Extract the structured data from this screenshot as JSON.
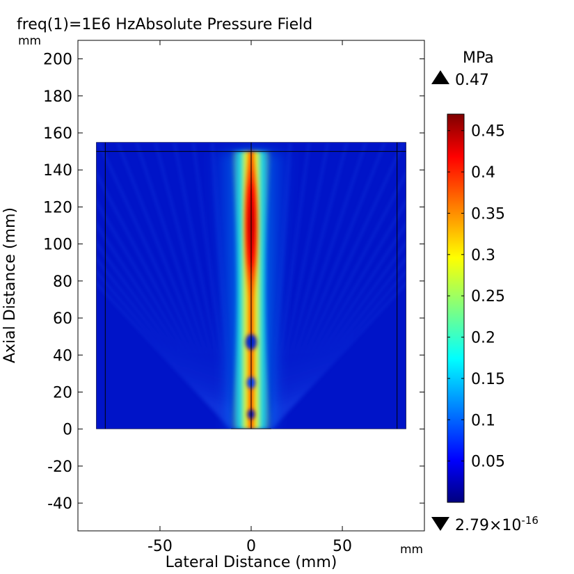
{
  "chart_data": {
    "type": "heatmap",
    "title": "freq(1)=1E6 HzAbsolute Pressure Field",
    "xlabel": "Lateral Distance (mm)",
    "ylabel": "Axial Distance (mm)",
    "x_unit": "mm",
    "y_unit": "mm",
    "xlim": [
      -95,
      95
    ],
    "ylim": [
      -55,
      210
    ],
    "x_ticks": [
      -50,
      0,
      50
    ],
    "y_ticks": [
      200,
      180,
      160,
      140,
      120,
      100,
      80,
      60,
      40,
      20,
      0,
      -20,
      -40
    ],
    "x_tick_labels": [
      "-50",
      "0",
      "50"
    ],
    "y_tick_labels": [
      "200",
      "180",
      "160",
      "140",
      "120",
      "100",
      "80",
      "60",
      "40",
      "20",
      "0",
      "-20",
      "-40"
    ],
    "domain": {
      "x": [
        -85,
        85
      ],
      "y": [
        0,
        155
      ]
    },
    "inner_boundary": {
      "x": [
        -80,
        80
      ],
      "y_top": 150
    },
    "transducer": {
      "x": [
        -11,
        11
      ],
      "y": 0
    },
    "colorbar": {
      "unit": "MPa",
      "max": 0.47,
      "max_label": "0.47",
      "min_label_base": "2.79×10",
      "min_label_exp": "-16",
      "ticks": [
        0.45,
        0.4,
        0.35,
        0.3,
        0.25,
        0.2,
        0.15,
        0.1,
        0.05
      ],
      "tick_labels": [
        "0.45",
        "0.4",
        "0.35",
        "0.3",
        "0.25",
        "0.2",
        "0.15",
        "0.1",
        "0.05"
      ],
      "colormap": "rainbow (jet)",
      "colors": [
        "#00007f",
        "#0000ff",
        "#00ffff",
        "#ffff00",
        "#ff0000",
        "#7f0000"
      ]
    },
    "grid": false
  }
}
